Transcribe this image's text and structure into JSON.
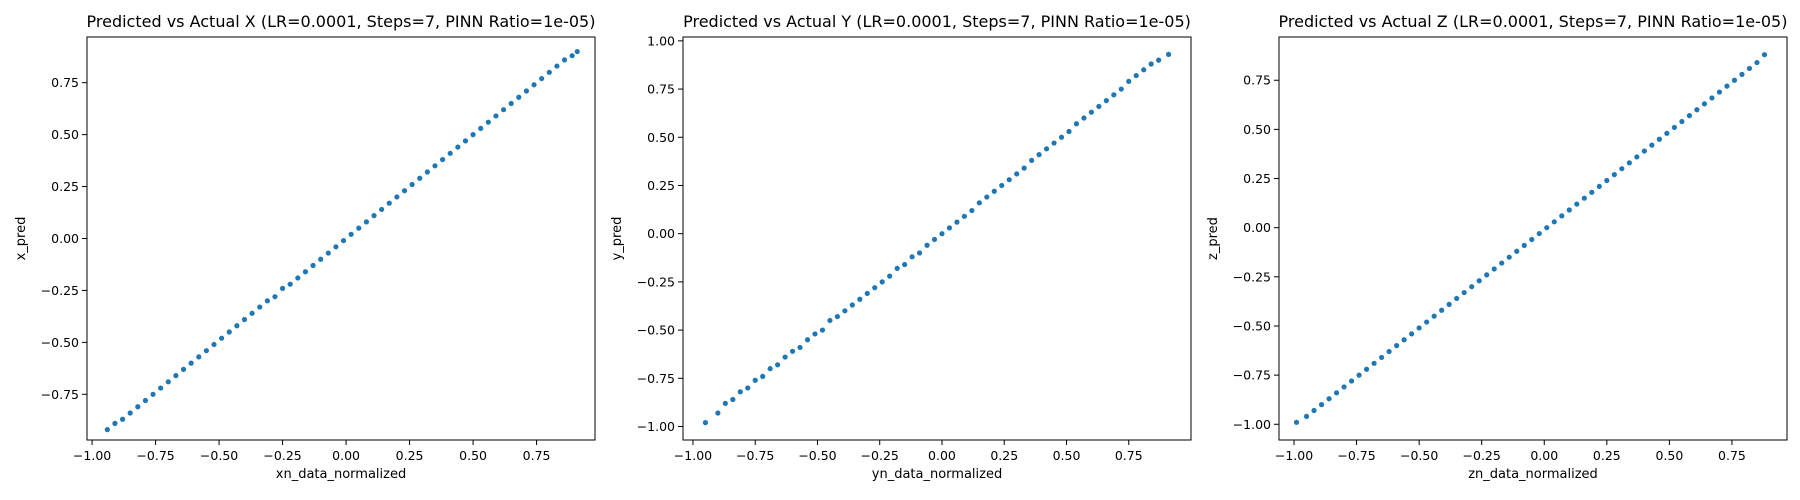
{
  "colors": {
    "marker": "#1f77b4",
    "axes": "#000000",
    "background": "#ffffff"
  },
  "chart_data": [
    {
      "type": "scatter",
      "title": "Predicted vs Actual X (LR=0.0001, Steps=7, PINN Ratio=1e-05)",
      "xlabel": "xn_data_normalized",
      "ylabel": "x_pred",
      "xlim": [
        -1.02,
        0.98
      ],
      "ylim": [
        -0.97,
        0.97
      ],
      "xticks": [
        -1.0,
        -0.75,
        -0.5,
        -0.25,
        0.0,
        0.25,
        0.5,
        0.75
      ],
      "xtick_labels": [
        "−1.00",
        "−0.75",
        "−0.50",
        "−0.25",
        "0.00",
        "0.25",
        "0.50",
        "0.75"
      ],
      "yticks": [
        -0.75,
        -0.5,
        -0.25,
        0.0,
        0.25,
        0.5,
        0.75
      ],
      "ytick_labels": [
        "−0.75",
        "−0.50",
        "−0.25",
        "0.00",
        "0.25",
        "0.50",
        "0.75"
      ],
      "grid": false,
      "series": [
        {
          "x": [
            -0.94,
            -0.91,
            -0.88,
            -0.85,
            -0.82,
            -0.79,
            -0.76,
            -0.73,
            -0.7,
            -0.67,
            -0.64,
            -0.61,
            -0.58,
            -0.55,
            -0.52,
            -0.49,
            -0.46,
            -0.43,
            -0.4,
            -0.37,
            -0.34,
            -0.31,
            -0.28,
            -0.25,
            -0.22,
            -0.19,
            -0.16,
            -0.13,
            -0.1,
            -0.07,
            -0.04,
            -0.01,
            0.02,
            0.05,
            0.08,
            0.11,
            0.14,
            0.17,
            0.2,
            0.23,
            0.26,
            0.29,
            0.32,
            0.35,
            0.38,
            0.41,
            0.44,
            0.47,
            0.5,
            0.53,
            0.56,
            0.59,
            0.62,
            0.65,
            0.68,
            0.71,
            0.74,
            0.77,
            0.8,
            0.83,
            0.86,
            0.89,
            0.91
          ],
          "y": [
            -0.92,
            -0.89,
            -0.87,
            -0.84,
            -0.81,
            -0.78,
            -0.75,
            -0.72,
            -0.69,
            -0.66,
            -0.63,
            -0.6,
            -0.57,
            -0.54,
            -0.51,
            -0.48,
            -0.45,
            -0.42,
            -0.39,
            -0.36,
            -0.33,
            -0.3,
            -0.28,
            -0.24,
            -0.22,
            -0.19,
            -0.16,
            -0.13,
            -0.1,
            -0.07,
            -0.04,
            -0.01,
            0.02,
            0.05,
            0.08,
            0.11,
            0.14,
            0.17,
            0.2,
            0.23,
            0.26,
            0.29,
            0.32,
            0.35,
            0.38,
            0.41,
            0.44,
            0.47,
            0.5,
            0.53,
            0.56,
            0.59,
            0.62,
            0.65,
            0.68,
            0.71,
            0.74,
            0.77,
            0.8,
            0.83,
            0.86,
            0.88,
            0.9
          ]
        }
      ]
    },
    {
      "type": "scatter",
      "title": "Predicted vs Actual Y (LR=0.0001, Steps=7, PINN Ratio=1e-05)",
      "xlabel": "yn_data_normalized",
      "ylabel": "y_pred",
      "xlim": [
        -1.04,
        1.0
      ],
      "ylim": [
        -1.07,
        1.02
      ],
      "xticks": [
        -1.0,
        -0.75,
        -0.5,
        -0.25,
        0.0,
        0.25,
        0.5,
        0.75
      ],
      "xtick_labels": [
        "−1.00",
        "−0.75",
        "−0.50",
        "−0.25",
        "0.00",
        "0.25",
        "0.50",
        "0.75"
      ],
      "yticks": [
        -1.0,
        -0.75,
        -0.5,
        -0.25,
        0.0,
        0.25,
        0.5,
        0.75,
        1.0
      ],
      "ytick_labels": [
        "−1.00",
        "−0.75",
        "−0.50",
        "−0.25",
        "0.00",
        "0.25",
        "0.50",
        "0.75",
        "1.00"
      ],
      "grid": false,
      "series": [
        {
          "x": [
            -0.95,
            -0.9,
            -0.87,
            -0.84,
            -0.81,
            -0.78,
            -0.75,
            -0.72,
            -0.69,
            -0.66,
            -0.63,
            -0.6,
            -0.57,
            -0.54,
            -0.51,
            -0.48,
            -0.45,
            -0.42,
            -0.39,
            -0.36,
            -0.33,
            -0.3,
            -0.27,
            -0.24,
            -0.21,
            -0.18,
            -0.15,
            -0.12,
            -0.09,
            -0.06,
            -0.03,
            0.0,
            0.03,
            0.06,
            0.09,
            0.12,
            0.15,
            0.18,
            0.21,
            0.24,
            0.27,
            0.3,
            0.33,
            0.36,
            0.39,
            0.42,
            0.45,
            0.48,
            0.51,
            0.54,
            0.57,
            0.6,
            0.63,
            0.66,
            0.69,
            0.72,
            0.75,
            0.78,
            0.81,
            0.84,
            0.87,
            0.91
          ],
          "y": [
            -0.98,
            -0.93,
            -0.88,
            -0.86,
            -0.82,
            -0.8,
            -0.76,
            -0.74,
            -0.7,
            -0.68,
            -0.64,
            -0.61,
            -0.59,
            -0.55,
            -0.52,
            -0.5,
            -0.45,
            -0.43,
            -0.4,
            -0.37,
            -0.34,
            -0.31,
            -0.28,
            -0.25,
            -0.22,
            -0.18,
            -0.16,
            -0.12,
            -0.1,
            -0.06,
            -0.03,
            0.0,
            0.03,
            0.06,
            0.09,
            0.12,
            0.16,
            0.19,
            0.22,
            0.25,
            0.28,
            0.31,
            0.34,
            0.38,
            0.41,
            0.44,
            0.47,
            0.5,
            0.53,
            0.57,
            0.6,
            0.63,
            0.66,
            0.69,
            0.72,
            0.75,
            0.79,
            0.82,
            0.85,
            0.88,
            0.9,
            0.93
          ]
        }
      ]
    },
    {
      "type": "scatter",
      "title": "Predicted vs Actual Z (LR=0.0001, Steps=7, PINN Ratio=1e-05)",
      "xlabel": "zn_data_normalized",
      "ylabel": "z_pred",
      "xlim": [
        -1.06,
        0.97
      ],
      "ylim": [
        -1.08,
        0.97
      ],
      "xticks": [
        -1.0,
        -0.75,
        -0.5,
        -0.25,
        0.0,
        0.25,
        0.5,
        0.75
      ],
      "xtick_labels": [
        "−1.00",
        "−0.75",
        "−0.50",
        "−0.25",
        "0.00",
        "0.25",
        "0.50",
        "0.75"
      ],
      "yticks": [
        -1.0,
        -0.75,
        -0.5,
        -0.25,
        0.0,
        0.25,
        0.5,
        0.75
      ],
      "ytick_labels": [
        "−1.00",
        "−0.75",
        "−0.50",
        "−0.25",
        "0.00",
        "0.25",
        "0.50",
        "0.75"
      ],
      "grid": false,
      "series": [
        {
          "x": [
            -0.99,
            -0.95,
            -0.92,
            -0.89,
            -0.86,
            -0.83,
            -0.8,
            -0.77,
            -0.74,
            -0.71,
            -0.68,
            -0.65,
            -0.62,
            -0.59,
            -0.56,
            -0.53,
            -0.5,
            -0.47,
            -0.44,
            -0.41,
            -0.38,
            -0.35,
            -0.32,
            -0.29,
            -0.26,
            -0.23,
            -0.2,
            -0.17,
            -0.14,
            -0.11,
            -0.08,
            -0.05,
            -0.02,
            0.01,
            0.04,
            0.07,
            0.1,
            0.13,
            0.16,
            0.19,
            0.22,
            0.25,
            0.28,
            0.31,
            0.34,
            0.37,
            0.4,
            0.43,
            0.46,
            0.49,
            0.52,
            0.55,
            0.58,
            0.61,
            0.64,
            0.67,
            0.7,
            0.73,
            0.76,
            0.79,
            0.82,
            0.85,
            0.88
          ],
          "y": [
            -0.99,
            -0.96,
            -0.93,
            -0.9,
            -0.87,
            -0.84,
            -0.81,
            -0.78,
            -0.75,
            -0.72,
            -0.69,
            -0.66,
            -0.63,
            -0.6,
            -0.57,
            -0.54,
            -0.51,
            -0.48,
            -0.45,
            -0.42,
            -0.39,
            -0.36,
            -0.33,
            -0.3,
            -0.27,
            -0.24,
            -0.21,
            -0.18,
            -0.15,
            -0.12,
            -0.09,
            -0.06,
            -0.03,
            0.0,
            0.03,
            0.06,
            0.09,
            0.12,
            0.15,
            0.18,
            0.21,
            0.24,
            0.27,
            0.3,
            0.33,
            0.36,
            0.39,
            0.42,
            0.45,
            0.48,
            0.51,
            0.54,
            0.57,
            0.6,
            0.63,
            0.66,
            0.69,
            0.72,
            0.75,
            0.78,
            0.81,
            0.84,
            0.88
          ]
        }
      ]
    }
  ]
}
